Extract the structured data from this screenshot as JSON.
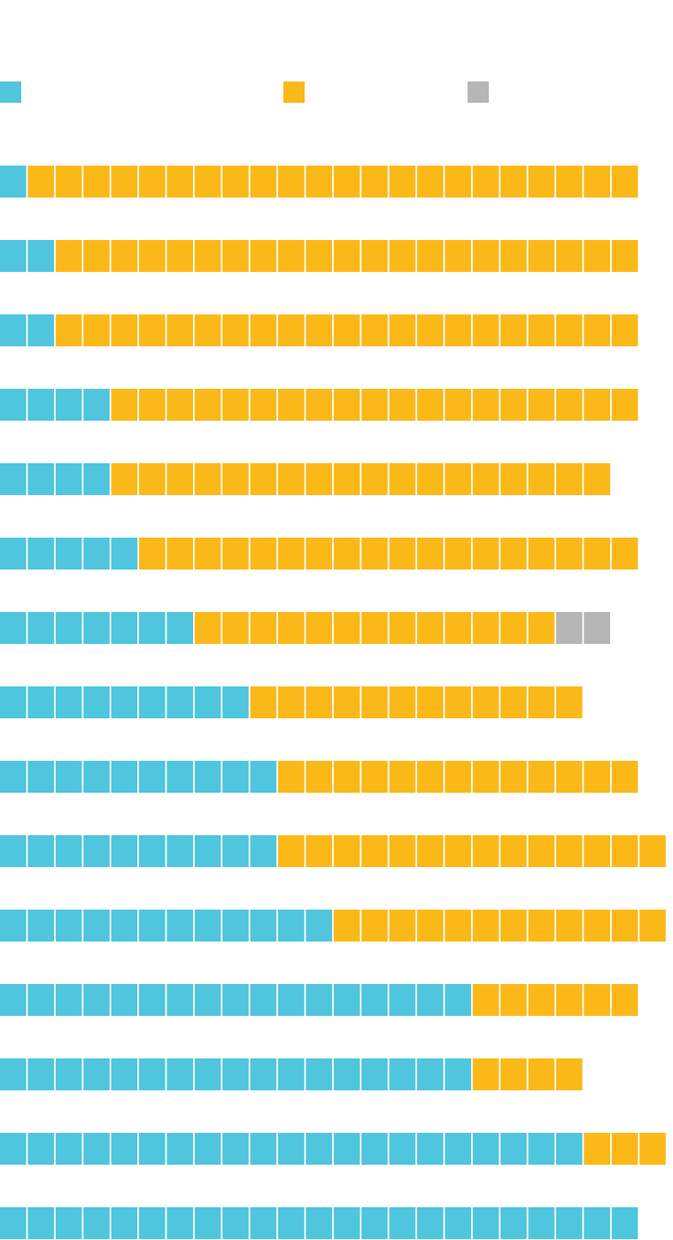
{
  "colors": {
    "series_a": "#4fc6dd",
    "series_b": "#fbb919",
    "series_c": "#b6b6b6"
  },
  "chart_data": {
    "type": "waffle-bar",
    "title": "",
    "legend": {
      "placement": "top",
      "entries": [
        {
          "swatch": "series_a",
          "label": ""
        },
        {
          "swatch": "series_b",
          "label": ""
        },
        {
          "swatch": "series_c",
          "label": ""
        }
      ]
    },
    "series_order": [
      "series_a",
      "series_b",
      "series_c"
    ],
    "rows": [
      {
        "series_a": 1,
        "series_b": 22,
        "series_c": 0
      },
      {
        "series_a": 2,
        "series_b": 21,
        "series_c": 0
      },
      {
        "series_a": 2,
        "series_b": 21,
        "series_c": 0
      },
      {
        "series_a": 4,
        "series_b": 19,
        "series_c": 0
      },
      {
        "series_a": 4,
        "series_b": 18,
        "series_c": 0
      },
      {
        "series_a": 5,
        "series_b": 18,
        "series_c": 0
      },
      {
        "series_a": 7,
        "series_b": 13,
        "series_c": 2
      },
      {
        "series_a": 9,
        "series_b": 12,
        "series_c": 0
      },
      {
        "series_a": 10,
        "series_b": 13,
        "series_c": 0
      },
      {
        "series_a": 10,
        "series_b": 14,
        "series_c": 0
      },
      {
        "series_a": 12,
        "series_b": 12,
        "series_c": 0
      },
      {
        "series_a": 17,
        "series_b": 6,
        "series_c": 0
      },
      {
        "series_a": 17,
        "series_b": 4,
        "series_c": 0
      },
      {
        "series_a": 21,
        "series_b": 3,
        "series_c": 0
      },
      {
        "series_a": 23,
        "series_b": 0,
        "series_c": 0
      }
    ]
  }
}
